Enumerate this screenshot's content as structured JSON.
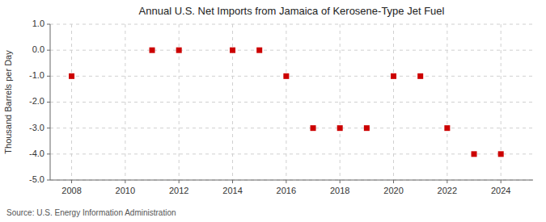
{
  "chart_data": {
    "type": "scatter",
    "title": "Annual U.S. Net Imports from Jamaica of Kerosene-Type Jet Fuel",
    "ylabel": "Thousand Barrels per Day",
    "annotation": "Source: U.S. Energy Information Administration",
    "x": [
      2008,
      2011,
      2012,
      2014,
      2015,
      2016,
      2017,
      2018,
      2019,
      2020,
      2021,
      2022,
      2023,
      2024
    ],
    "values": [
      -1,
      0,
      0,
      0,
      0,
      -1,
      -3,
      -3,
      -3,
      -1,
      -1,
      -3,
      -4,
      -4
    ],
    "color": "#cc0000",
    "marker": "square",
    "xlim": [
      2007.2,
      2025.2
    ],
    "xticks": [
      2008,
      2010,
      2012,
      2014,
      2016,
      2018,
      2020,
      2022,
      2024
    ],
    "ylim": [
      -5.0,
      1.0
    ],
    "yticks": [
      {
        "value": 1.0,
        "label": "1.0"
      },
      {
        "value": 0.0,
        "label": "0.0"
      },
      {
        "value": -1.0,
        "label": "-1.0"
      },
      {
        "value": -2.0,
        "label": "-2.0"
      },
      {
        "value": -3.0,
        "label": "-3.0"
      },
      {
        "value": -4.0,
        "label": "-4.0"
      },
      {
        "value": -5.0,
        "label": "-5.0"
      }
    ],
    "grid": true
  }
}
